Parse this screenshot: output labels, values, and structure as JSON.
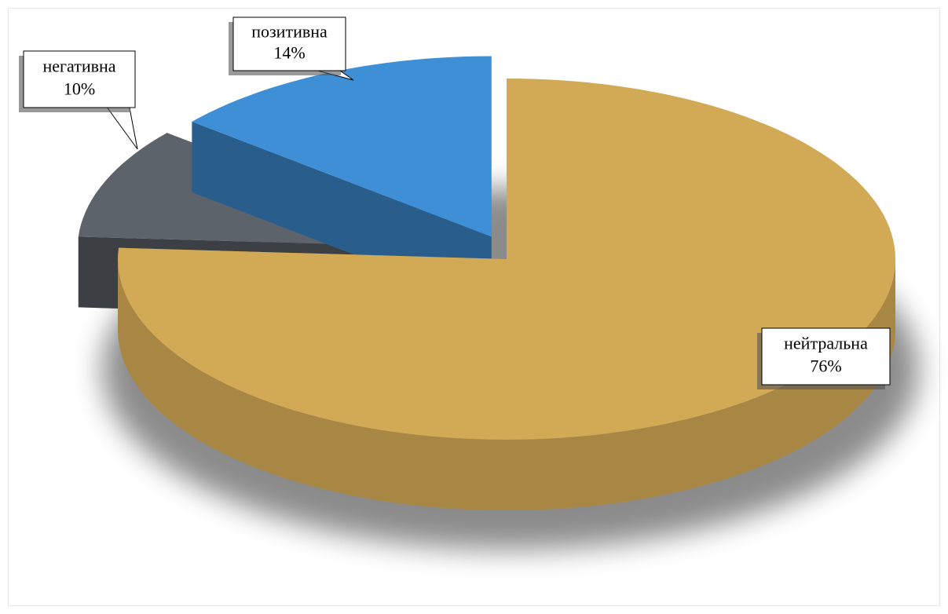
{
  "chart_data": {
    "type": "pie",
    "categories": [
      "негативна",
      "позитивна",
      "нейтральна"
    ],
    "values": [
      10,
      14,
      76
    ],
    "value_labels": [
      "10%",
      "14%",
      "76%"
    ],
    "colors": [
      "#5d636b",
      "#3f8fd6",
      "#d2a955"
    ]
  }
}
